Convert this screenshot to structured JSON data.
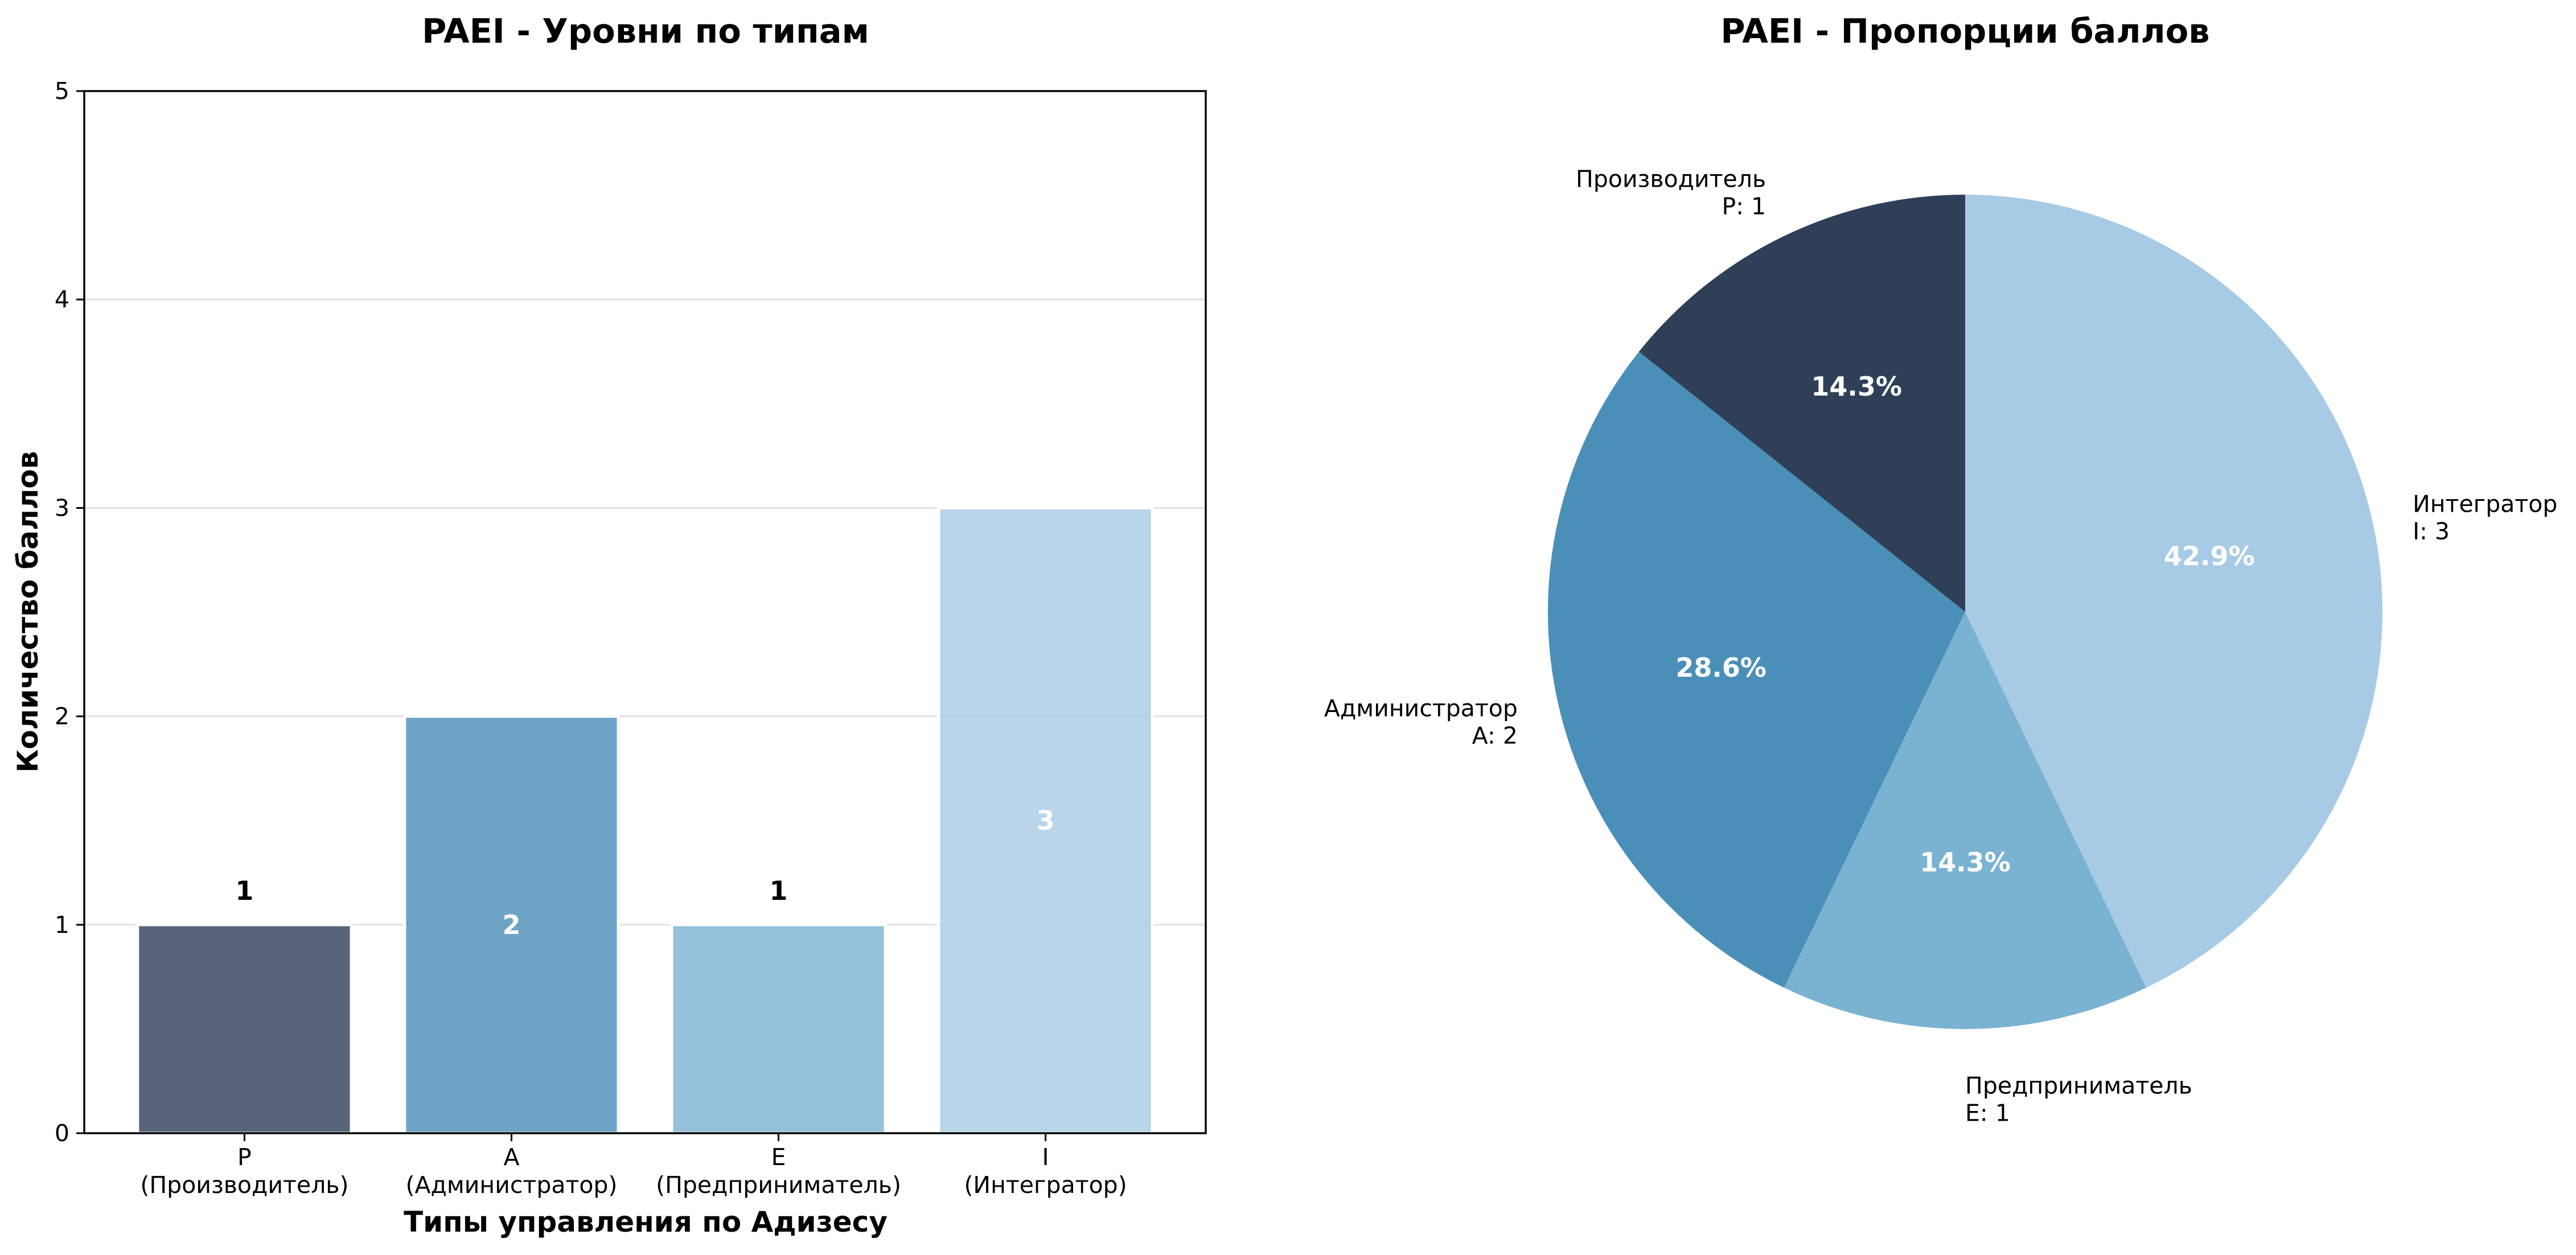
{
  "chart_data": [
    {
      "type": "bar",
      "title": "PAEI - Уровни по типам",
      "xlabel": "Типы управления по Адизесу",
      "ylabel": "Количество баллов",
      "categories": [
        "P",
        "A",
        "E",
        "I"
      ],
      "category_sublabels": [
        "(Производитель)",
        "(Администратор)",
        "(Предприниматель)",
        "(Интегратор)"
      ],
      "values": [
        1,
        2,
        1,
        3
      ],
      "value_labels": [
        "1",
        "2",
        "1",
        "3"
      ],
      "ylim": [
        0,
        5
      ],
      "yticks": [
        "0",
        "1",
        "2",
        "3",
        "4",
        "5"
      ],
      "grid": "horizontal",
      "colors": [
        "#2e3f57",
        "#4a8fb8",
        "#7ab2d2",
        "#a8cbe5"
      ]
    },
    {
      "type": "pie",
      "title": "PAEI - Пропорции баллов",
      "slices": [
        {
          "name": "Производитель",
          "code_label": "P: 1",
          "value": 1,
          "pct_label": "14.3%",
          "color": "#2e3f57"
        },
        {
          "name": "Администратор",
          "code_label": "A: 2",
          "value": 2,
          "pct_label": "28.6%",
          "color": "#4a8fb8"
        },
        {
          "name": "Предприниматель",
          "code_label": "E: 1",
          "value": 1,
          "pct_label": "14.3%",
          "color": "#7ab2d2"
        },
        {
          "name": "Интегратор",
          "code_label": "I: 3",
          "value": 3,
          "pct_label": "42.9%",
          "color": "#a8cbe5"
        }
      ]
    }
  ]
}
